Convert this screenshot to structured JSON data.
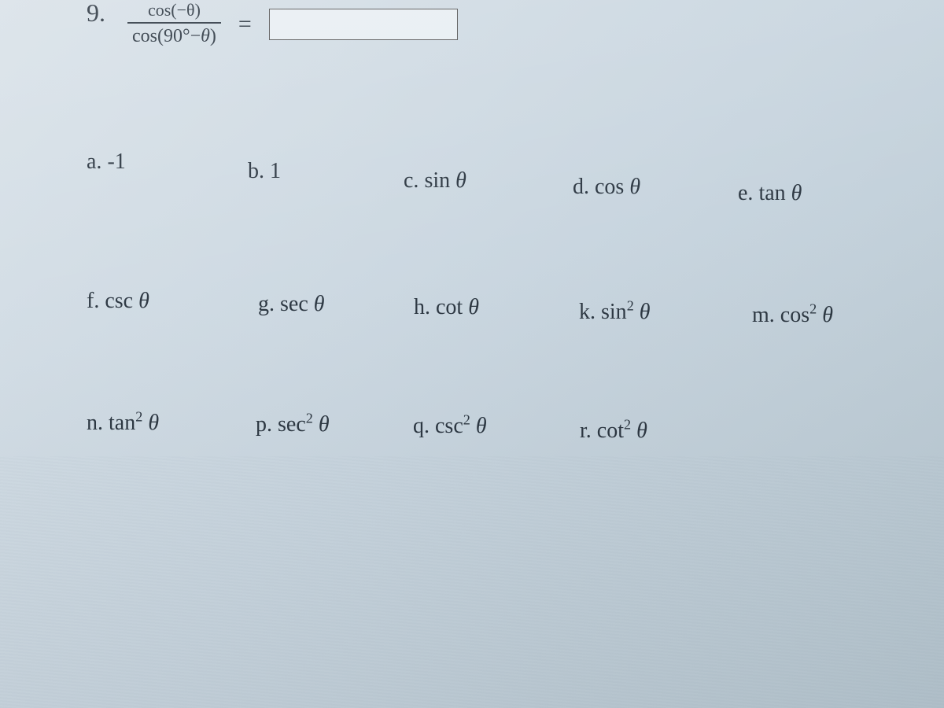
{
  "question": {
    "number": "9.",
    "numerator": "cos(−θ)",
    "denominator_html": "cos(90°−θ)",
    "equals": "=",
    "input_value": ""
  },
  "choices": {
    "row1": [
      {
        "label": "a.",
        "value": "-1"
      },
      {
        "label": "b.",
        "value": "1"
      },
      {
        "label": "c.",
        "value": "sin θ"
      },
      {
        "label": "d.",
        "value": "cos θ"
      },
      {
        "label": "e.",
        "value": "tan θ"
      }
    ],
    "row2": [
      {
        "label": "f.",
        "value": "csc θ"
      },
      {
        "label": "g.",
        "value": "sec θ"
      },
      {
        "label": "h.",
        "value": "cot θ"
      },
      {
        "label": "k.",
        "value_html": "sin<sup>2</sup> θ"
      },
      {
        "label": "m.",
        "value_html": "cos<sup>2</sup> θ"
      }
    ],
    "row3": [
      {
        "label": "n.",
        "value_html": "tan<sup>2</sup> θ"
      },
      {
        "label": "p.",
        "value_html": "sec<sup>2</sup> θ"
      },
      {
        "label": "q.",
        "value_html": "csc<sup>2</sup> θ"
      },
      {
        "label": "r.",
        "value_html": "cot<sup>2</sup> θ"
      }
    ]
  },
  "style": {
    "background_gradient": [
      "#d8e1e8",
      "#c8d5df",
      "#b8c8d2"
    ],
    "text_color": "#2a3540",
    "font_family": "Times New Roman, serif",
    "choice_fontsize": 28,
    "question_fontsize": 24,
    "input_border": "#555555",
    "input_bg": "#e8eef3"
  }
}
